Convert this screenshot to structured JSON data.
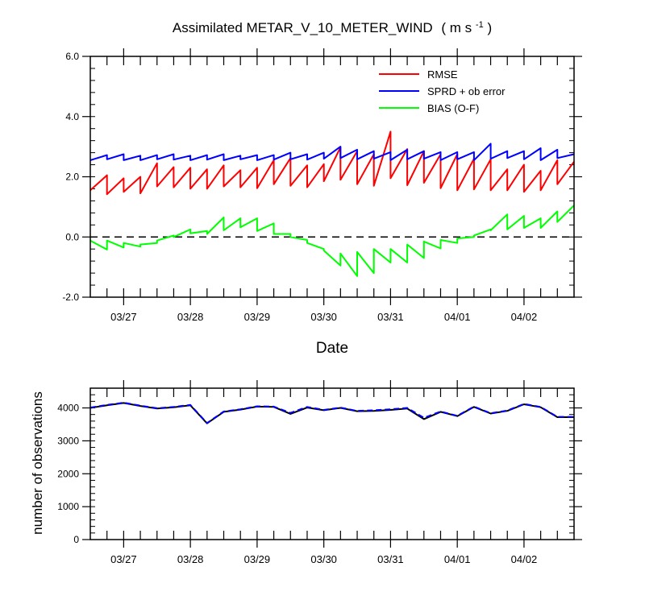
{
  "chart_data": [
    {
      "type": "line",
      "title": "Assimilated METAR_V_10_METER_WIND",
      "title_units": "( m s",
      "title_units_sup": "-1",
      "title_units_close": " )",
      "xlabel": "Date",
      "ylabel": "",
      "xlim": [
        0,
        7.25
      ],
      "ylim": [
        -2.0,
        6.0
      ],
      "yticks": [
        -2.0,
        0.0,
        2.0,
        4.0,
        6.0
      ],
      "ytick_labels": [
        "-2.0",
        "0.0",
        "2.0",
        "4.0",
        "6.0"
      ],
      "xtick_positions": [
        0.5,
        1.5,
        2.5,
        3.5,
        4.5,
        5.5,
        6.5
      ],
      "xtick_labels": [
        "03/27",
        "03/28",
        "03/29",
        "03/30",
        "03/31",
        "04/01",
        "04/02"
      ],
      "zero_line": true,
      "legend_position": "top-right",
      "series": [
        {
          "name": "RMSE",
          "color": "#ff0000",
          "x": [
            0,
            0.25,
            0.25,
            0.5,
            0.5,
            0.75,
            0.75,
            1.0,
            1.0,
            1.25,
            1.25,
            1.5,
            1.5,
            1.75,
            1.75,
            2.0,
            2.0,
            2.25,
            2.25,
            2.5,
            2.5,
            2.75,
            2.75,
            3.0,
            3.0,
            3.25,
            3.25,
            3.5,
            3.5,
            3.75,
            3.75,
            4.0,
            4.0,
            4.25,
            4.25,
            4.5,
            4.5,
            4.75,
            4.75,
            5.0,
            5.0,
            5.25,
            5.25,
            5.5,
            5.5,
            5.75,
            5.75,
            6.0,
            6.0,
            6.25,
            6.25,
            6.5,
            6.5,
            6.75,
            6.75,
            7.0,
            7.0,
            7.25
          ],
          "y": [
            1.55,
            2.05,
            1.42,
            1.95,
            1.5,
            2.0,
            1.45,
            2.45,
            1.68,
            2.32,
            1.65,
            2.3,
            1.6,
            2.25,
            1.6,
            2.38,
            1.68,
            2.22,
            1.65,
            2.3,
            1.62,
            2.55,
            1.75,
            2.62,
            1.7,
            2.38,
            1.65,
            2.42,
            1.85,
            2.98,
            1.9,
            2.85,
            1.75,
            2.75,
            1.7,
            3.5,
            1.95,
            2.92,
            1.72,
            2.85,
            1.8,
            2.75,
            1.62,
            2.75,
            1.55,
            2.6,
            1.58,
            2.58,
            1.55,
            2.25,
            1.55,
            2.4,
            1.5,
            2.2,
            1.55,
            2.55,
            1.75,
            2.5
          ]
        },
        {
          "name": "SPRD + ob error",
          "color": "#0000ff",
          "x": [
            0,
            0.25,
            0.25,
            0.5,
            0.5,
            0.75,
            0.75,
            1.0,
            1.0,
            1.25,
            1.25,
            1.5,
            1.5,
            1.75,
            1.75,
            2.0,
            2.0,
            2.25,
            2.25,
            2.5,
            2.5,
            2.75,
            2.75,
            3.0,
            3.0,
            3.25,
            3.25,
            3.5,
            3.5,
            3.75,
            3.75,
            4.0,
            4.0,
            4.25,
            4.25,
            4.5,
            4.5,
            4.75,
            4.75,
            5.0,
            5.0,
            5.25,
            5.25,
            5.5,
            5.5,
            5.75,
            5.75,
            6.0,
            6.0,
            6.25,
            6.25,
            6.5,
            6.5,
            6.75,
            6.75,
            7.0,
            7.0,
            7.25
          ],
          "y": [
            2.55,
            2.72,
            2.58,
            2.75,
            2.55,
            2.7,
            2.55,
            2.72,
            2.58,
            2.75,
            2.57,
            2.7,
            2.55,
            2.72,
            2.57,
            2.75,
            2.55,
            2.7,
            2.58,
            2.72,
            2.55,
            2.72,
            2.57,
            2.8,
            2.58,
            2.75,
            2.57,
            2.8,
            2.6,
            3.0,
            2.62,
            2.9,
            2.58,
            2.85,
            2.6,
            2.82,
            2.55,
            2.9,
            2.58,
            2.85,
            2.6,
            2.82,
            2.55,
            2.82,
            2.58,
            2.82,
            2.55,
            3.1,
            2.6,
            2.85,
            2.62,
            2.85,
            2.58,
            2.95,
            2.55,
            2.9,
            2.62,
            2.75
          ]
        },
        {
          "name": "BIAS (O-F)",
          "color": "#00ff00",
          "x": [
            0,
            0.25,
            0.25,
            0.5,
            0.5,
            0.75,
            0.75,
            1.0,
            1.0,
            1.25,
            1.25,
            1.5,
            1.5,
            1.75,
            1.75,
            2.0,
            2.0,
            2.25,
            2.25,
            2.5,
            2.5,
            2.75,
            2.75,
            3.0,
            3.0,
            3.25,
            3.25,
            3.5,
            3.5,
            3.75,
            3.75,
            4.0,
            4.0,
            4.25,
            4.25,
            4.5,
            4.5,
            4.75,
            4.75,
            5.0,
            5.0,
            5.25,
            5.25,
            5.5,
            5.5,
            5.75,
            5.75,
            6.0,
            6.0,
            6.25,
            6.25,
            6.5,
            6.5,
            6.75,
            6.75,
            7.0,
            7.0,
            7.25
          ],
          "y": [
            -0.12,
            -0.42,
            -0.12,
            -0.35,
            -0.2,
            -0.32,
            -0.25,
            -0.2,
            -0.12,
            0.05,
            0,
            0.25,
            0.12,
            0.2,
            0.1,
            0.65,
            0.22,
            0.62,
            0.32,
            0.62,
            0.2,
            0.45,
            0.1,
            0.1,
            0,
            -0.1,
            -0.2,
            -0.4,
            -0.45,
            -0.95,
            -0.55,
            -1.3,
            -0.5,
            -1.2,
            -0.4,
            -0.85,
            -0.4,
            -0.85,
            -0.25,
            -0.7,
            -0.15,
            -0.38,
            -0.1,
            -0.2,
            -0.05,
            0.0,
            0.05,
            0.25,
            0.22,
            0.75,
            0.25,
            0.7,
            0.3,
            0.62,
            0.3,
            0.85,
            0.5,
            1.05
          ]
        }
      ]
    },
    {
      "type": "line",
      "title": "",
      "xlabel": "",
      "ylabel": "number of observations",
      "xlim": [
        0,
        7.25
      ],
      "ylim": [
        0,
        4600
      ],
      "yticks": [
        0,
        1000,
        2000,
        3000,
        4000
      ],
      "ytick_labels": [
        "0",
        "1000",
        "2000",
        "3000",
        "4000"
      ],
      "xtick_positions": [
        0.5,
        1.5,
        2.5,
        3.5,
        4.5,
        5.5,
        6.5
      ],
      "xtick_labels": [
        "03/27",
        "03/28",
        "03/29",
        "03/30",
        "03/31",
        "04/01",
        "04/02"
      ],
      "series": [
        {
          "name": "",
          "color": "#000000",
          "dash": false,
          "x": [
            0,
            0.25,
            0.5,
            0.75,
            1.0,
            1.25,
            1.5,
            1.75,
            2.0,
            2.25,
            2.5,
            2.75,
            3.0,
            3.25,
            3.5,
            3.75,
            4.0,
            4.25,
            4.5,
            4.75,
            5.0,
            5.25,
            5.5,
            5.75,
            6.0,
            6.25,
            6.5,
            6.75,
            7.0,
            7.25
          ],
          "y": [
            4000,
            4080,
            4150,
            4060,
            3980,
            4020,
            4080,
            3530,
            3880,
            3950,
            4040,
            4030,
            3820,
            4010,
            3930,
            4000,
            3900,
            3910,
            3940,
            3980,
            3660,
            3880,
            3750,
            4030,
            3830,
            3910,
            4110,
            4020,
            3720,
            3720
          ]
        },
        {
          "name": "",
          "color": "#0000ff",
          "dash": true,
          "x": [
            0,
            0.25,
            0.5,
            0.75,
            1.0,
            1.25,
            1.5,
            1.75,
            2.0,
            2.25,
            2.5,
            2.75,
            3.0,
            3.25,
            3.5,
            3.75,
            4.0,
            4.25,
            4.5,
            4.75,
            5.0,
            5.25,
            5.5,
            5.75,
            6.0,
            6.25,
            6.5,
            6.75,
            7.0,
            7.25
          ],
          "y": [
            4010,
            4090,
            4160,
            4070,
            3990,
            4030,
            4090,
            3540,
            3890,
            3960,
            4050,
            4040,
            3850,
            4030,
            3940,
            4010,
            3910,
            3930,
            3960,
            4000,
            3700,
            3890,
            3760,
            4040,
            3840,
            3920,
            4120,
            4030,
            3730,
            3730
          ]
        }
      ]
    }
  ]
}
